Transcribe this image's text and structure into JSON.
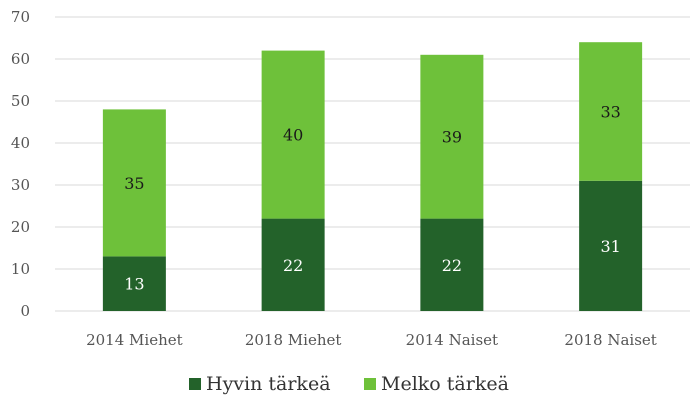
{
  "chart_data": {
    "type": "bar",
    "stacked": true,
    "categories": [
      "2014 Miehet",
      "2018 Miehet",
      "2014 Naiset",
      "2018 Naiset"
    ],
    "series": [
      {
        "name": "Hyvin tärkeä",
        "values": [
          13,
          22,
          22,
          31
        ],
        "color": "#23622a",
        "label_color": "#ffffff"
      },
      {
        "name": "Melko tärkeä",
        "values": [
          35,
          40,
          39,
          33
        ],
        "color": "#6ec13a",
        "label_color": "#1a1a1a"
      }
    ],
    "yticks": [
      0,
      10,
      20,
      30,
      40,
      50,
      60,
      70
    ],
    "ylim": [
      0,
      70
    ],
    "grid": true,
    "legend_position": "bottom"
  }
}
